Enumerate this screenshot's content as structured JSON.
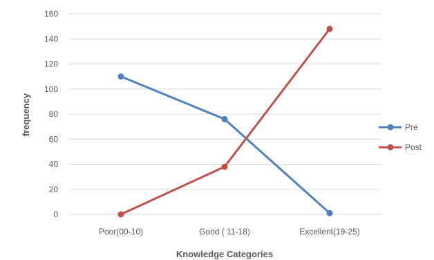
{
  "chart_data": {
    "type": "line",
    "categories": [
      "Poor(00-10)",
      "Good ( 11-18)",
      "Excellent(19-25)"
    ],
    "series": [
      {
        "name": "Pre",
        "values": [
          110,
          76,
          1
        ],
        "color": "#4F81BD"
      },
      {
        "name": "Post",
        "values": [
          0,
          38,
          148
        ],
        "color": "#C0504D"
      }
    ],
    "xlabel": "Knowledge Categories",
    "ylabel": "frequency",
    "ylim": [
      0,
      160
    ],
    "yticks": [
      "0",
      "20",
      "40",
      "60",
      "80",
      "100",
      "120",
      "140",
      "160"
    ],
    "grid": true,
    "legend_position": "right"
  }
}
